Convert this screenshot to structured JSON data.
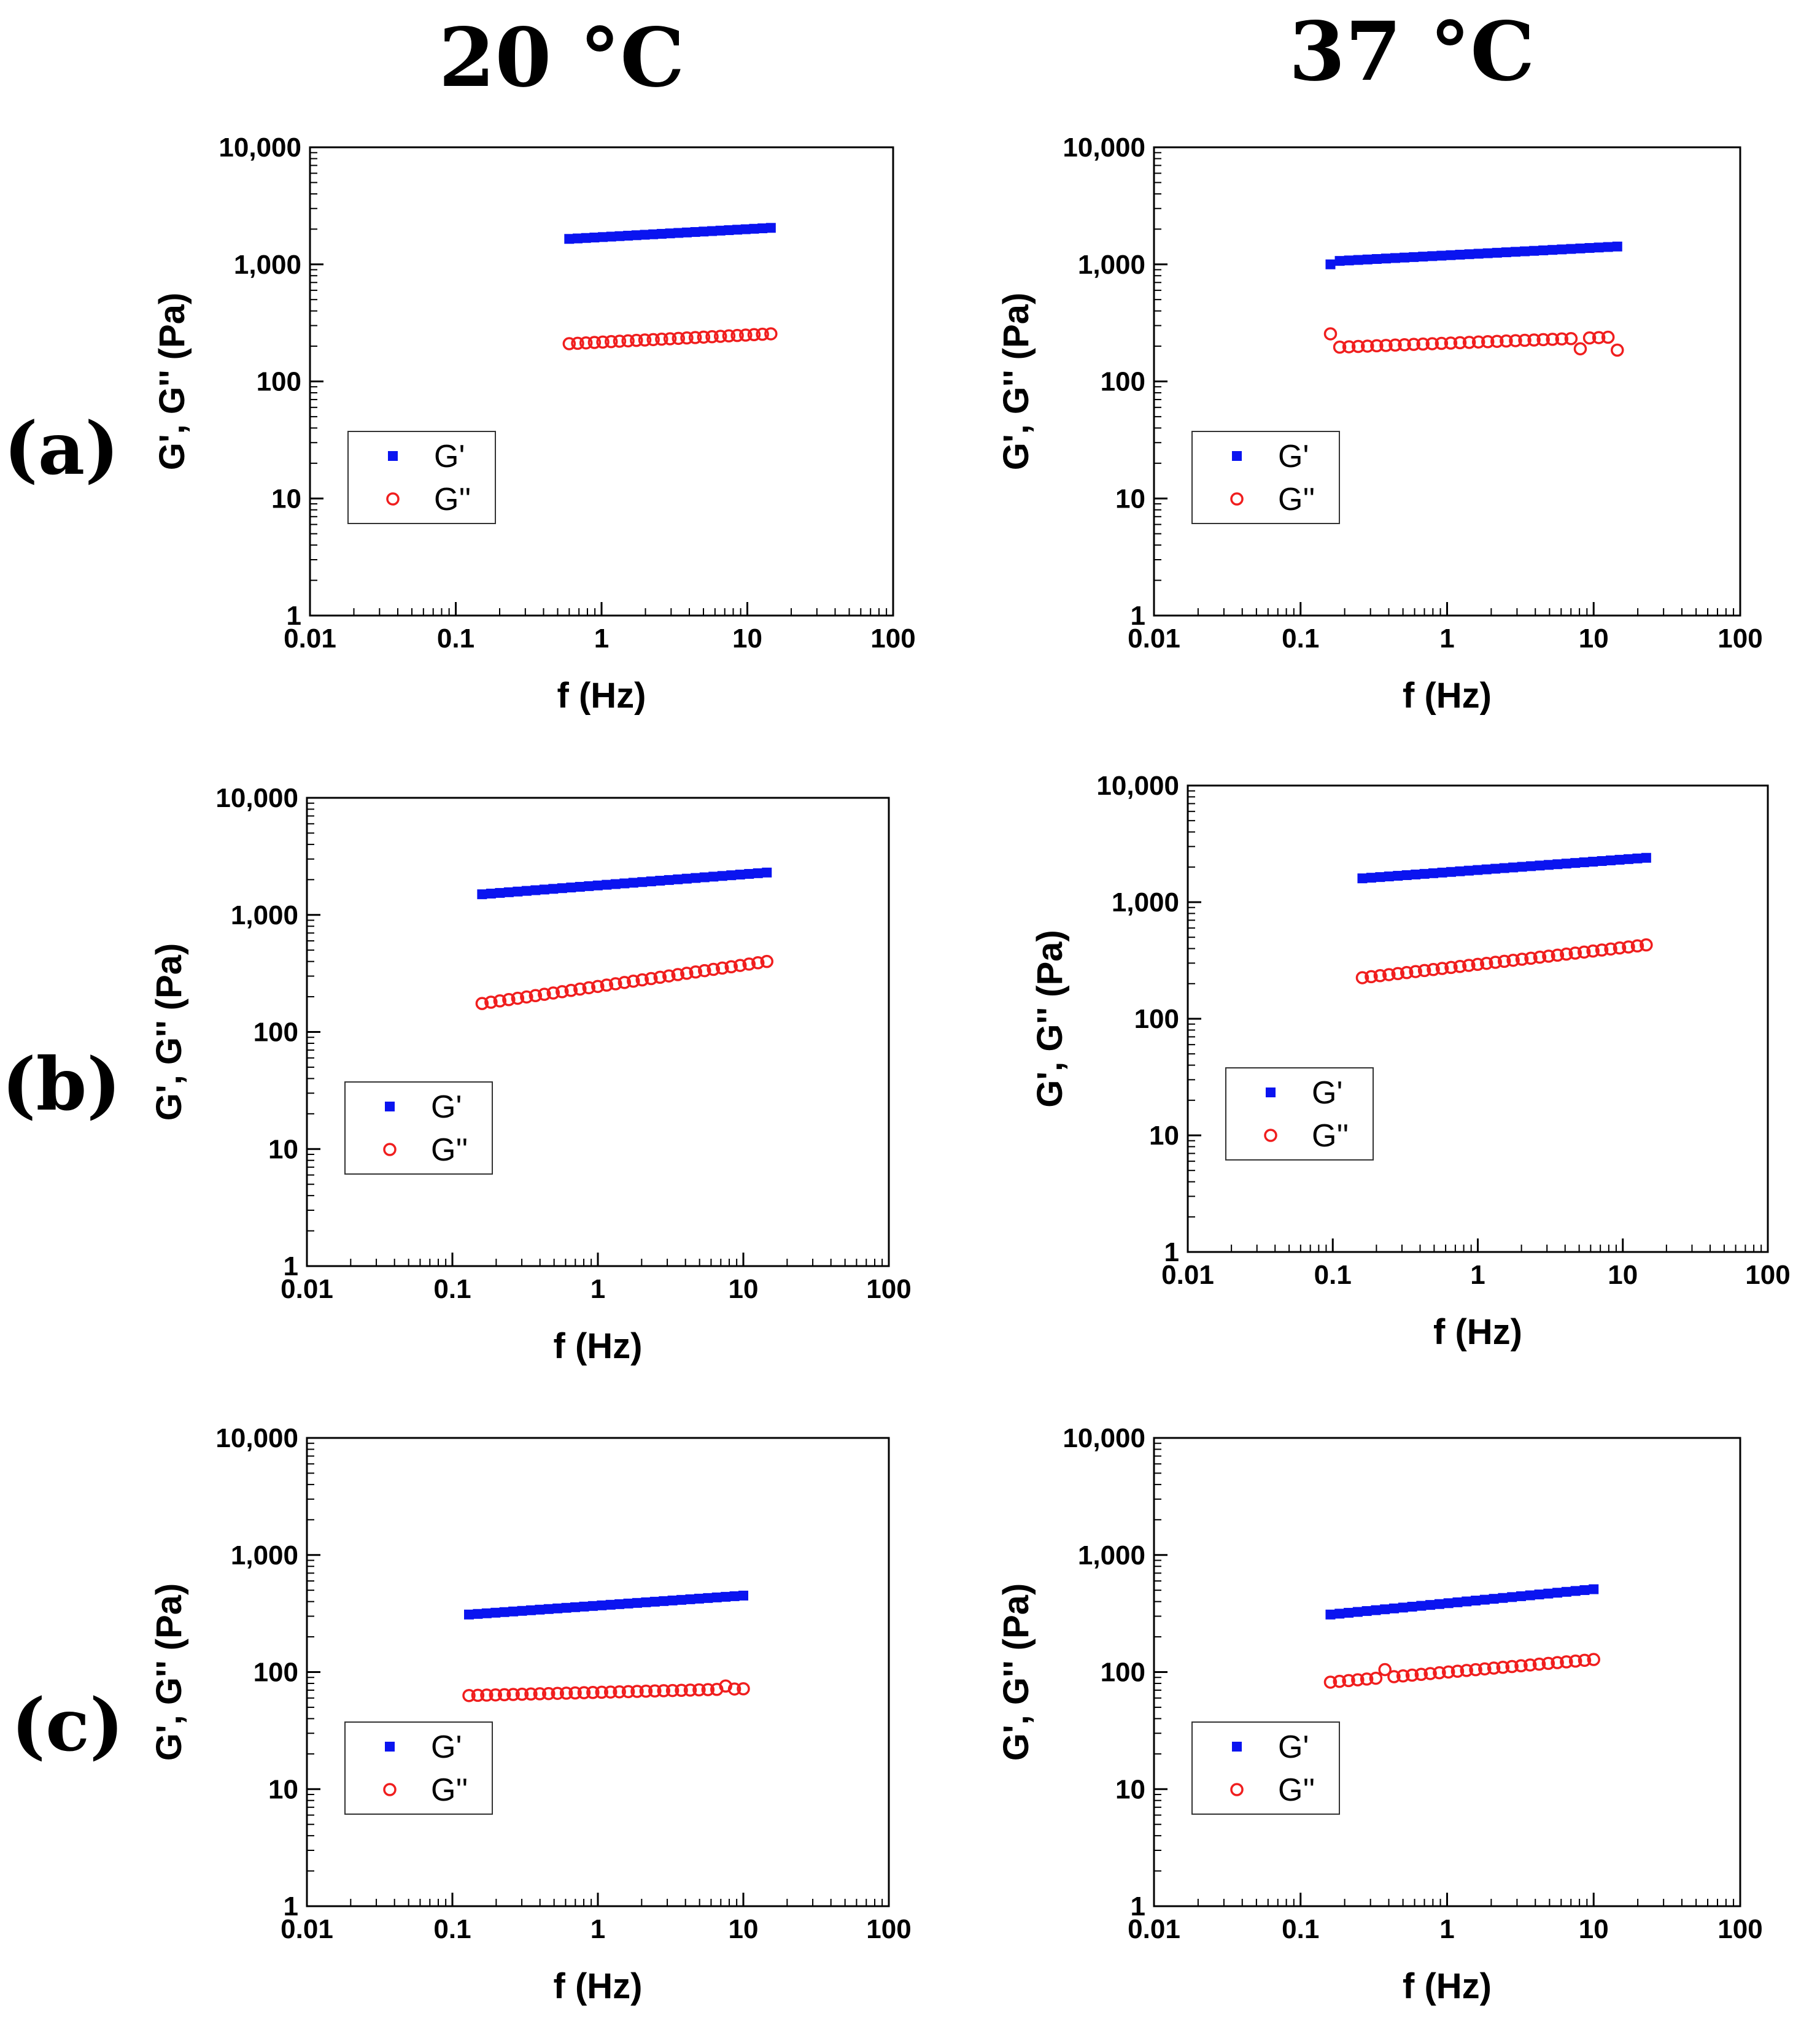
{
  "headers": {
    "col1": "20 °C",
    "col2": "37 °C"
  },
  "rows": [
    "(a)",
    "(b)",
    "(c)"
  ],
  "series_style": {
    "gprime": {
      "name": "G'",
      "color": "#0a14f0",
      "marker": "square"
    },
    "gdouble": {
      "name": "G''",
      "color": "#f01e1e",
      "marker": "open-circle"
    }
  },
  "chart_data": [
    {
      "id": "a-20",
      "row": "(a)",
      "temperature": "20 °C",
      "type": "scatter",
      "xlabel": "f (Hz)",
      "ylabel": "G', G'' (Pa)",
      "xscale": "log",
      "yscale": "log",
      "xlim": [
        0.01,
        100
      ],
      "ylim": [
        1,
        10000
      ],
      "xticks": [
        "0.01",
        "0.1",
        "1",
        "10",
        "100"
      ],
      "yticks": [
        "1",
        "10",
        "100",
        "1,000",
        "10,000"
      ],
      "legend": {
        "position": "lower-left",
        "entries": [
          "G'",
          "G''"
        ]
      },
      "series": [
        {
          "name": "G'",
          "f_range": [
            0.6,
            14.5
          ],
          "n": 25,
          "start": 1650,
          "end": 2050,
          "anomalies": []
        },
        {
          "name": "G''",
          "f_range": [
            0.6,
            14.5
          ],
          "n": 25,
          "start": 210,
          "end": 255,
          "anomalies": []
        }
      ]
    },
    {
      "id": "a-37",
      "row": "(a)",
      "temperature": "37 °C",
      "type": "scatter",
      "xlabel": "f (Hz)",
      "ylabel": "G', G'' (Pa)",
      "xscale": "log",
      "yscale": "log",
      "xlim": [
        0.01,
        100
      ],
      "ylim": [
        1,
        10000
      ],
      "xticks": [
        "0.01",
        "0.1",
        "1",
        "10",
        "100"
      ],
      "yticks": [
        "1",
        "10",
        "100",
        "1,000",
        "10,000"
      ],
      "legend": {
        "position": "lower-left",
        "entries": [
          "G'",
          "G''"
        ]
      },
      "series": [
        {
          "name": "G'",
          "f_range": [
            0.16,
            14.5
          ],
          "n": 32,
          "start": 1060,
          "end": 1420,
          "anomalies": [
            [
              0,
              1000
            ]
          ]
        },
        {
          "name": "G''",
          "f_range": [
            0.16,
            14.5
          ],
          "n": 32,
          "start": 195,
          "end": 240,
          "anomalies": [
            [
              0,
              255
            ],
            [
              27,
              190
            ],
            [
              31,
              185
            ]
          ]
        }
      ]
    },
    {
      "id": "b-20",
      "row": "(b)",
      "temperature": "20 °C",
      "type": "scatter",
      "xlabel": "f (Hz)",
      "ylabel": "G', G'' (Pa)",
      "xscale": "log",
      "yscale": "log",
      "xlim": [
        0.01,
        100
      ],
      "ylim": [
        1,
        10000
      ],
      "xticks": [
        "0.01",
        "0.1",
        "1",
        "10",
        "100"
      ],
      "yticks": [
        "1",
        "10",
        "100",
        "1,000",
        "10,000"
      ],
      "legend": {
        "position": "lower-left",
        "entries": [
          "G'",
          "G''"
        ]
      },
      "series": [
        {
          "name": "G'",
          "f_range": [
            0.16,
            14.5
          ],
          "n": 33,
          "start": 1500,
          "end": 2300,
          "anomalies": []
        },
        {
          "name": "G''",
          "f_range": [
            0.16,
            14.5
          ],
          "n": 33,
          "start": 175,
          "end": 400,
          "anomalies": []
        }
      ]
    },
    {
      "id": "b-37",
      "row": "(b)",
      "temperature": "37 °C",
      "type": "scatter",
      "xlabel": "f (Hz)",
      "ylabel": "G', G'' (Pa)",
      "xscale": "log",
      "yscale": "log",
      "xlim": [
        0.01,
        100
      ],
      "ylim": [
        1,
        10000
      ],
      "xticks": [
        "0.01",
        "0.1",
        "1",
        "10",
        "100"
      ],
      "yticks": [
        "1",
        "10",
        "100",
        "1,000",
        "10,000"
      ],
      "legend": {
        "position": "lower-left",
        "entries": [
          "G'",
          "G''"
        ]
      },
      "series": [
        {
          "name": "G'",
          "f_range": [
            0.16,
            14.5
          ],
          "n": 33,
          "start": 1600,
          "end": 2400,
          "anomalies": []
        },
        {
          "name": "G''",
          "f_range": [
            0.16,
            14.5
          ],
          "n": 33,
          "start": 225,
          "end": 430,
          "anomalies": []
        }
      ]
    },
    {
      "id": "c-20",
      "row": "(c)",
      "temperature": "20 °C",
      "type": "scatter",
      "xlabel": "f (Hz)",
      "ylabel": "G', G'' (Pa)",
      "xscale": "log",
      "yscale": "log",
      "xlim": [
        0.01,
        100
      ],
      "ylim": [
        1,
        10000
      ],
      "xticks": [
        "0.01",
        "0.1",
        "1",
        "10",
        "100"
      ],
      "yticks": [
        "1",
        "10",
        "100",
        "1,000",
        "10,000"
      ],
      "legend": {
        "position": "lower-left",
        "entries": [
          "G'",
          "G''"
        ]
      },
      "series": [
        {
          "name": "G'",
          "f_range": [
            0.13,
            10
          ],
          "n": 32,
          "start": 310,
          "end": 450,
          "anomalies": []
        },
        {
          "name": "G''",
          "f_range": [
            0.13,
            10
          ],
          "n": 32,
          "start": 63,
          "end": 72,
          "anomalies": [
            [
              29,
              76
            ]
          ]
        }
      ]
    },
    {
      "id": "c-37",
      "row": "(c)",
      "temperature": "37 °C",
      "type": "scatter",
      "xlabel": "f (Hz)",
      "ylabel": "G', G'' (Pa)",
      "xscale": "log",
      "yscale": "log",
      "xlim": [
        0.01,
        100
      ],
      "ylim": [
        1,
        10000
      ],
      "xticks": [
        "0.01",
        "0.1",
        "1",
        "10",
        "100"
      ],
      "yticks": [
        "1",
        "10",
        "100",
        "1,000",
        "10,000"
      ],
      "legend": {
        "position": "lower-left",
        "entries": [
          "G'",
          "G''"
        ]
      },
      "series": [
        {
          "name": "G'",
          "f_range": [
            0.16,
            10
          ],
          "n": 30,
          "start": 310,
          "end": 510,
          "anomalies": []
        },
        {
          "name": "G''",
          "f_range": [
            0.16,
            10
          ],
          "n": 30,
          "start": 82,
          "end": 128,
          "anomalies": [
            [
              6,
              105
            ]
          ]
        }
      ]
    }
  ]
}
